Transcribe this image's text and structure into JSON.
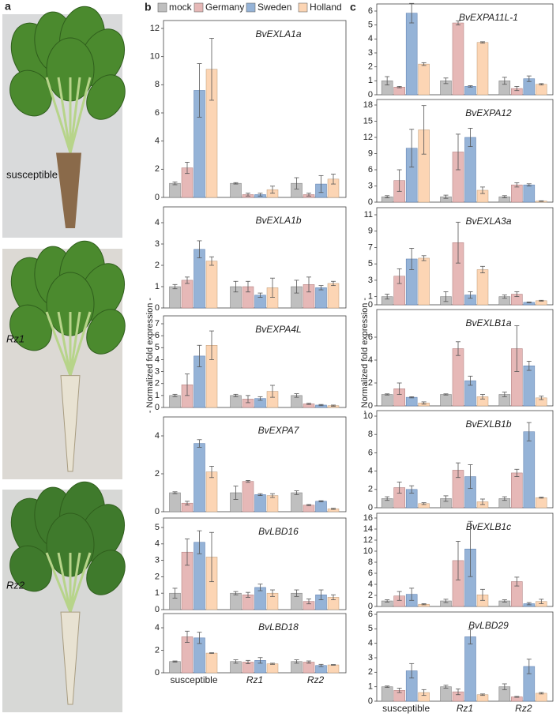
{
  "panel_labels": [
    "a",
    "b",
    "c"
  ],
  "photos": [
    {
      "label": "susceptible"
    },
    {
      "label": "Rz1"
    },
    {
      "label": "Rz2"
    }
  ],
  "legend": {
    "position": "top",
    "items": [
      {
        "name": "mock",
        "color": "#bfbfbf"
      },
      {
        "name": "Germany",
        "color": "#e6b8b7"
      },
      {
        "name": "Sweden",
        "color": "#95b3d7"
      },
      {
        "name": "Holland",
        "color": "#fcd5b4"
      }
    ]
  },
  "y_axis_label": "- Normalized fold expression -",
  "chart_data": [
    {
      "type": "bar",
      "title": "BvEXLA1a",
      "categories": [
        null,
        null,
        null
      ],
      "ylim": [
        0,
        12
      ],
      "yticks": [
        0,
        2,
        4,
        6,
        8,
        10,
        12
      ],
      "series": [
        {
          "values": [
            1.0,
            1.0,
            1.0
          ],
          "errors": [
            0.1,
            0.05,
            0.4
          ]
        },
        {
          "values": [
            2.1,
            0.2,
            0.2
          ],
          "errors": [
            0.4,
            0.1,
            0.1
          ]
        },
        {
          "values": [
            7.6,
            0.2,
            0.95
          ],
          "errors": [
            1.9,
            0.1,
            0.6
          ]
        },
        {
          "values": [
            9.1,
            0.55,
            1.3
          ],
          "errors": [
            2.2,
            0.25,
            0.35
          ]
        }
      ]
    },
    {
      "type": "bar",
      "title": "BvEXLA1b",
      "categories": [
        null,
        null,
        null
      ],
      "ylim": [
        0,
        4
      ],
      "yticks": [
        0,
        1,
        2,
        3,
        4
      ],
      "series": [
        {
          "values": [
            1.0,
            1.0,
            1.0
          ],
          "errors": [
            0.1,
            0.25,
            0.3
          ]
        },
        {
          "values": [
            1.3,
            1.0,
            1.1
          ],
          "errors": [
            0.15,
            0.25,
            0.35
          ]
        },
        {
          "values": [
            2.75,
            0.6,
            0.95
          ],
          "errors": [
            0.4,
            0.1,
            0.1
          ]
        },
        {
          "values": [
            2.2,
            0.95,
            1.15
          ],
          "errors": [
            0.2,
            0.45,
            0.1
          ]
        }
      ]
    },
    {
      "type": "bar",
      "title": "BvEXPA4L",
      "categories": [
        null,
        null,
        null
      ],
      "ylim": [
        0,
        7
      ],
      "yticks": [
        0,
        1,
        2,
        3,
        4,
        5,
        6,
        7
      ],
      "series": [
        {
          "values": [
            1.0,
            1.0,
            1.0
          ],
          "errors": [
            0.1,
            0.1,
            0.15
          ]
        },
        {
          "values": [
            1.9,
            0.7,
            0.3
          ],
          "errors": [
            0.9,
            0.3,
            0.05
          ]
        },
        {
          "values": [
            4.3,
            0.75,
            0.2
          ],
          "errors": [
            0.9,
            0.15,
            0.05
          ]
        },
        {
          "values": [
            5.2,
            1.35,
            0.15
          ],
          "errors": [
            1.2,
            0.5,
            0.05
          ]
        }
      ]
    },
    {
      "type": "bar",
      "title": "BvEXPA7",
      "categories": [
        null,
        null,
        null
      ],
      "ylim": [
        0,
        4
      ],
      "yticks": [
        0,
        2,
        4
      ],
      "series": [
        {
          "values": [
            1.0,
            1.0,
            1.0
          ],
          "errors": [
            0.05,
            0.35,
            0.1
          ]
        },
        {
          "values": [
            0.45,
            1.6,
            0.35
          ],
          "errors": [
            0.1,
            0.05,
            0.03
          ]
        },
        {
          "values": [
            3.6,
            0.9,
            0.55
          ],
          "errors": [
            0.2,
            0.05,
            0.03
          ]
        },
        {
          "values": [
            2.1,
            0.85,
            0.15
          ],
          "errors": [
            0.3,
            0.1,
            0.03
          ]
        }
      ]
    },
    {
      "type": "bar",
      "title": "BvLBD16",
      "categories": [
        null,
        null,
        null
      ],
      "ylim": [
        0,
        5
      ],
      "yticks": [
        0,
        1,
        2,
        3,
        4,
        5
      ],
      "series": [
        {
          "values": [
            1.0,
            1.0,
            1.0
          ],
          "errors": [
            0.3,
            0.1,
            0.2
          ]
        },
        {
          "values": [
            3.5,
            0.9,
            0.5
          ],
          "errors": [
            0.8,
            0.15,
            0.15
          ]
        },
        {
          "values": [
            4.1,
            1.35,
            0.9
          ],
          "errors": [
            0.7,
            0.2,
            0.3
          ]
        },
        {
          "values": [
            3.2,
            1.0,
            0.75
          ],
          "errors": [
            1.5,
            0.2,
            0.15
          ]
        }
      ]
    },
    {
      "type": "bar",
      "title": "BvLBD18",
      "categories": [
        "susceptible",
        "Rz1",
        "Rz2"
      ],
      "ylim": [
        0,
        4
      ],
      "yticks": [
        0,
        2,
        4
      ],
      "series": [
        {
          "values": [
            1.0,
            1.0,
            1.0
          ],
          "errors": [
            0.05,
            0.15,
            0.15
          ]
        },
        {
          "values": [
            3.2,
            0.95,
            0.95
          ],
          "errors": [
            0.5,
            0.15,
            0.1
          ]
        },
        {
          "values": [
            3.1,
            1.1,
            0.65
          ],
          "errors": [
            0.5,
            0.25,
            0.1
          ]
        },
        {
          "values": [
            1.75,
            0.8,
            0.7
          ],
          "errors": [
            0.03,
            0.05,
            0.03
          ]
        }
      ]
    },
    {
      "type": "bar",
      "title": "BvEXPA11L-1",
      "categories": [
        null,
        null,
        null
      ],
      "ylim": [
        0,
        6
      ],
      "yticks": [
        0,
        1,
        2,
        3,
        4,
        5,
        6
      ],
      "series": [
        {
          "values": [
            1.0,
            1.0,
            1.0
          ],
          "errors": [
            0.3,
            0.2,
            0.25
          ]
        },
        {
          "values": [
            0.55,
            5.15,
            0.45
          ],
          "errors": [
            0.05,
            0.15,
            0.15
          ]
        },
        {
          "values": [
            5.85,
            0.6,
            1.15
          ],
          "errors": [
            0.7,
            0.05,
            0.2
          ]
        },
        {
          "values": [
            2.2,
            3.75,
            0.75
          ],
          "errors": [
            0.1,
            0.05,
            0.05
          ]
        }
      ]
    },
    {
      "type": "bar",
      "title": "BvEXPA12",
      "categories": [
        null,
        null,
        null
      ],
      "ylim": [
        0,
        18
      ],
      "yticks": [
        0,
        3,
        6,
        9,
        12,
        15,
        18
      ],
      "series": [
        {
          "values": [
            1.0,
            1.0,
            1.0
          ],
          "errors": [
            0.2,
            0.3,
            0.2
          ]
        },
        {
          "values": [
            4.0,
            9.3,
            3.2
          ],
          "errors": [
            2.0,
            3.3,
            0.4
          ]
        },
        {
          "values": [
            10.0,
            12.0,
            3.2
          ],
          "errors": [
            3.5,
            1.7,
            0.2
          ]
        },
        {
          "values": [
            13.4,
            2.2,
            0.2
          ],
          "errors": [
            4.5,
            0.6,
            0.05
          ]
        }
      ]
    },
    {
      "type": "bar",
      "title": "BvEXLA3a",
      "categories": [
        null,
        null,
        null
      ],
      "ylim": [
        0,
        11
      ],
      "yticks": [
        0,
        1,
        3,
        5,
        7,
        9,
        11
      ],
      "series": [
        {
          "values": [
            1.0,
            1.0,
            1.0
          ],
          "errors": [
            0.3,
            0.6,
            0.2
          ]
        },
        {
          "values": [
            3.5,
            7.6,
            1.3
          ],
          "errors": [
            0.9,
            2.5,
            0.3
          ]
        },
        {
          "values": [
            5.6,
            1.2,
            0.3
          ],
          "errors": [
            1.3,
            0.4,
            0.05
          ]
        },
        {
          "values": [
            5.7,
            4.3,
            0.5
          ],
          "errors": [
            0.3,
            0.4,
            0.05
          ]
        }
      ]
    },
    {
      "type": "bar",
      "title": "BvEXLB1a",
      "categories": [
        null,
        null,
        null
      ],
      "ylim": [
        0,
        8
      ],
      "yticks": [
        0,
        2,
        4,
        6
      ],
      "series": [
        {
          "values": [
            1.0,
            1.0,
            1.0
          ],
          "errors": [
            0.05,
            0.05,
            0.2
          ]
        },
        {
          "values": [
            1.5,
            5.0,
            5.0
          ],
          "errors": [
            0.5,
            0.6,
            2.0
          ]
        },
        {
          "values": [
            0.75,
            2.2,
            3.5
          ],
          "errors": [
            0.05,
            0.4,
            0.4
          ]
        },
        {
          "values": [
            0.25,
            0.8,
            0.7
          ],
          "errors": [
            0.1,
            0.2,
            0.15
          ]
        }
      ]
    },
    {
      "type": "bar",
      "title": "BvEXLB1b",
      "categories": [
        null,
        null,
        null
      ],
      "ylim": [
        0,
        10
      ],
      "yticks": [
        0,
        2,
        4,
        6,
        8,
        10
      ],
      "series": [
        {
          "values": [
            1.0,
            1.0,
            1.0
          ],
          "errors": [
            0.2,
            0.3,
            0.2
          ]
        },
        {
          "values": [
            2.2,
            4.1,
            3.8
          ],
          "errors": [
            0.6,
            0.8,
            0.4
          ]
        },
        {
          "values": [
            2.0,
            3.4,
            8.3
          ],
          "errors": [
            0.4,
            1.3,
            1.0
          ]
        },
        {
          "values": [
            0.45,
            0.65,
            1.1
          ],
          "errors": [
            0.1,
            0.3,
            0.05
          ]
        }
      ]
    },
    {
      "type": "bar",
      "title": "BvEXLB1c",
      "categories": [
        null,
        null,
        null
      ],
      "ylim": [
        0,
        16
      ],
      "yticks": [
        0,
        2,
        4,
        6,
        8,
        10,
        12,
        14,
        16
      ],
      "series": [
        {
          "values": [
            1.0,
            1.0,
            1.0
          ],
          "errors": [
            0.2,
            0.3,
            0.2
          ]
        },
        {
          "values": [
            1.9,
            8.3,
            4.5
          ],
          "errors": [
            0.8,
            3.5,
            0.8
          ]
        },
        {
          "values": [
            2.2,
            10.4,
            0.5
          ],
          "errors": [
            1.1,
            5.0,
            0.2
          ]
        },
        {
          "values": [
            0.4,
            2.1,
            0.9
          ],
          "errors": [
            0.1,
            1.0,
            0.4
          ]
        }
      ]
    },
    {
      "type": "bar",
      "title": "BvLBD29",
      "categories": [
        "susceptible",
        "Rz1",
        "Rz2"
      ],
      "ylim": [
        0,
        6
      ],
      "yticks": [
        0,
        1,
        2,
        3,
        4,
        5,
        6
      ],
      "series": [
        {
          "values": [
            1.0,
            1.0,
            1.0
          ],
          "errors": [
            0.05,
            0.1,
            0.2
          ]
        },
        {
          "values": [
            0.75,
            0.65,
            0.3
          ],
          "errors": [
            0.15,
            0.2,
            0.03
          ]
        },
        {
          "values": [
            2.1,
            4.45,
            2.4
          ],
          "errors": [
            0.5,
            0.5,
            0.5
          ]
        },
        {
          "values": [
            0.6,
            0.45,
            0.55
          ],
          "errors": [
            0.2,
            0.05,
            0.05
          ]
        }
      ]
    }
  ]
}
